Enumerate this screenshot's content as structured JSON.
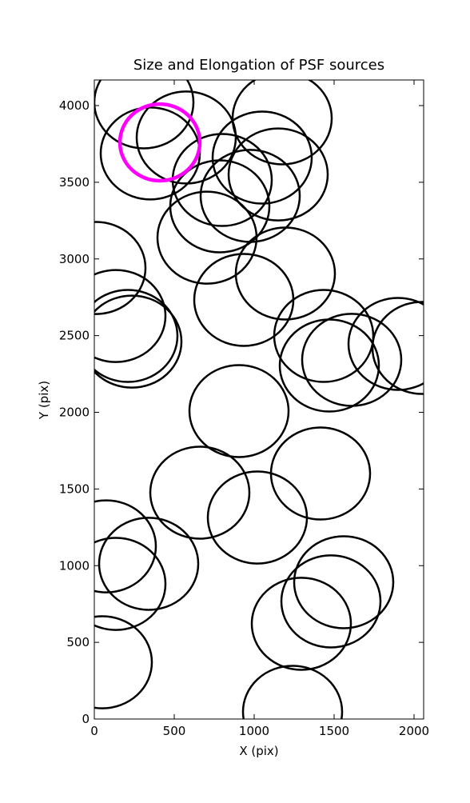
{
  "chart_data": {
    "type": "ellipse",
    "title": "Size and Elongation of PSF sources",
    "xlabel": "X (pix)",
    "ylabel": "Y (pix)",
    "xlim": [
      0,
      2060
    ],
    "ylim": [
      0,
      4167
    ],
    "xticks": [
      0,
      500,
      1000,
      1500,
      2000
    ],
    "yticks": [
      0,
      500,
      1000,
      1500,
      2000,
      2500,
      3000,
      3500,
      4000
    ],
    "series": [
      {
        "color": "#000000",
        "x": [
          310,
          575,
          350,
          1175,
          800,
          1050,
          1150,
          975,
          785,
          705,
          1195,
          935,
          10,
          135,
          210,
          235,
          1435,
          1470,
          1610,
          1900,
          2050,
          905,
          1415,
          660,
          1020,
          75,
          340,
          135,
          50,
          1560,
          1480,
          1295,
          1240
        ],
        "values": [
          4021,
          3792,
          3688,
          3917,
          3515,
          3661,
          3551,
          3411,
          3343,
          3139,
          2905,
          2733,
          2941,
          2628,
          2498,
          2461,
          2498,
          2305,
          2342,
          2446,
          2420,
          2008,
          1601,
          1476,
          1314,
          1126,
          1012,
          881,
          370,
          892,
          767,
          621,
          47
        ],
        "widths": [
          620,
          620,
          620,
          620,
          620,
          620,
          620,
          620,
          620,
          620,
          620,
          620,
          620,
          620,
          620,
          620,
          620,
          620,
          620,
          620,
          620,
          620,
          620,
          620,
          620,
          620,
          620,
          620,
          620,
          620,
          620,
          620,
          620
        ],
        "heights": [
          600,
          600,
          600,
          600,
          600,
          600,
          600,
          600,
          600,
          600,
          600,
          600,
          600,
          600,
          600,
          600,
          600,
          600,
          600,
          600,
          600,
          600,
          600,
          600,
          600,
          600,
          600,
          600,
          600,
          600,
          600,
          600,
          600
        ]
      },
      {
        "color": "#ff00ff",
        "x": [
          410
        ],
        "values": [
          3760
        ],
        "widths": [
          500
        ],
        "heights": [
          500
        ]
      }
    ]
  }
}
